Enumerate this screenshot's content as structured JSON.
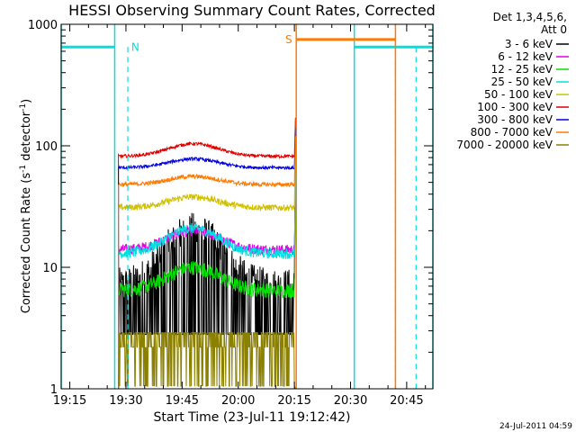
{
  "chart_data": {
    "type": "line",
    "title": "HESSI Observing Summary Count Rates, Corrected",
    "xlabel": "Start Time (23-Jul-11 19:12:42)",
    "ylabel_main": "Corrected Count Rate (s",
    "ylabel_sup1": "-1",
    "ylabel_mid": " detector",
    "ylabel_sup2": "-1",
    "ylabel_end": ")",
    "y_scale": "log",
    "ylim": [
      1,
      1000
    ],
    "xlim": [
      "19:12:42",
      "20:52:00"
    ],
    "x_ticks": [
      "19:15",
      "19:30",
      "19:45",
      "20:00",
      "20:15",
      "20:30",
      "20:45"
    ],
    "y_ticks": [
      "1",
      "10",
      "100",
      "1000"
    ],
    "legend_header": [
      "Det 1,3,4,5,6,",
      "Att 0"
    ],
    "timestamp": "24-Jul-2011 04:59",
    "legend_placement": "right",
    "series": [
      {
        "name": "3 - 6 keV",
        "color": "#000000",
        "start": "19:28",
        "end": "20:15",
        "base": 2.8,
        "noise": 0.55,
        "bump": 8,
        "spiky": true
      },
      {
        "name": "6 - 12 keV",
        "color": "#e000e0",
        "start": "19:28",
        "end": "20:15",
        "base": 14,
        "noise": 0.1,
        "bump": 6
      },
      {
        "name": "12 - 25 keV",
        "color": "#00e000",
        "start": "19:28",
        "end": "20:15",
        "base": 6.5,
        "noise": 0.14,
        "bump": 3.5
      },
      {
        "name": "25 - 50 keV",
        "color": "#00e0e0",
        "start": "19:28",
        "end": "20:15",
        "base": 13,
        "noise": 0.1,
        "bump": 8
      },
      {
        "name": "50 - 100 keV",
        "color": "#d0c000",
        "start": "19:28",
        "end": "20:15",
        "base": 31,
        "noise": 0.06,
        "bump": 7
      },
      {
        "name": "100 - 300 keV",
        "color": "#e00000",
        "start": "19:28",
        "end": "20:15",
        "base": 82,
        "noise": 0.03,
        "bump": 22
      },
      {
        "name": "300 - 800 keV",
        "color": "#0000e0",
        "start": "19:28",
        "end": "20:15",
        "base": 66,
        "noise": 0.03,
        "bump": 12
      },
      {
        "name": "800 - 7000 keV",
        "color": "#ff7a00",
        "start": "19:28",
        "end": "20:15",
        "base": 48,
        "noise": 0.04,
        "bump": 8
      },
      {
        "name": "7000 - 20000 keV",
        "color": "#8b8000",
        "start": "19:28",
        "end": "20:15",
        "base": 1.5,
        "noise": 0.9,
        "bump": 0,
        "spiky": true
      }
    ],
    "spike_end": {
      "time": "20:15",
      "values": [
        170,
        40,
        30,
        60,
        90,
        170,
        140,
        120,
        1
      ]
    },
    "annotations": [
      {
        "label": "N",
        "type": "night",
        "color": "#00e0e0",
        "y": 650,
        "intervals": [
          [
            "19:12:42",
            "19:27"
          ],
          [
            "20:31",
            "20:52"
          ]
        ],
        "dashed_at": [
          "19:30:30",
          "20:47:30"
        ],
        "label_at": "19:32:30"
      },
      {
        "label": "S",
        "type": "saa",
        "color": "#ff7a00",
        "y": 750,
        "intervals": [
          [
            "20:15:30",
            "20:42"
          ]
        ],
        "dashed_at": [
          "20:42"
        ],
        "label_at": "20:13:30"
      }
    ]
  }
}
